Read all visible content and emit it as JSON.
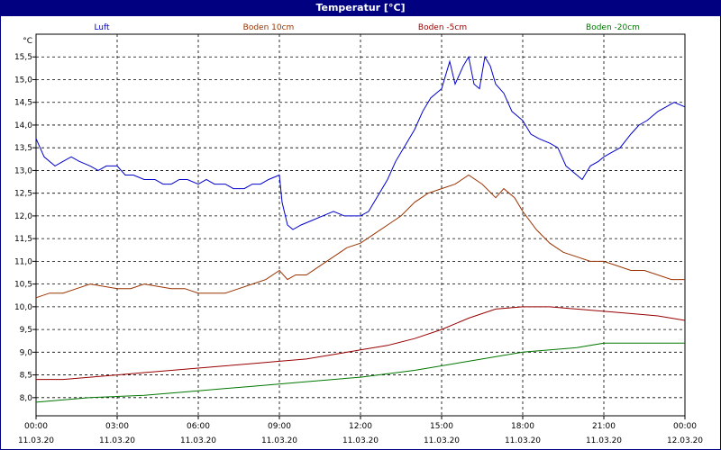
{
  "window": {
    "title": "Temperatur [°C]"
  },
  "chart_data": {
    "type": "line",
    "title": "Temperatur [°C]",
    "ylabel": "°C",
    "xlabel": "",
    "ylim": [
      7.6,
      16.0
    ],
    "xlim_hours": [
      0,
      24
    ],
    "grid": true,
    "legend_position": "top",
    "y_ticks": [
      "8,0",
      "8,5",
      "9,0",
      "9,5",
      "10,0",
      "10,5",
      "11,0",
      "11,5",
      "12,0",
      "12,5",
      "13,0",
      "13,5",
      "14,0",
      "14,5",
      "15,0",
      "15,5"
    ],
    "x_ticks": [
      {
        "time": "00:00",
        "date": "11.03.20"
      },
      {
        "time": "03:00",
        "date": "11.03.20"
      },
      {
        "time": "06:00",
        "date": "11.03.20"
      },
      {
        "time": "09:00",
        "date": "11.03.20"
      },
      {
        "time": "12:00",
        "date": "11.03.20"
      },
      {
        "time": "15:00",
        "date": "11.03.20"
      },
      {
        "time": "18:00",
        "date": "11.03.20"
      },
      {
        "time": "21:00",
        "date": "11.03.20"
      },
      {
        "time": "00:00",
        "date": "12.03.20"
      }
    ],
    "series": [
      {
        "name": "Luft",
        "color": "#0000cc",
        "points": [
          [
            0,
            13.7
          ],
          [
            0.3,
            13.3
          ],
          [
            0.7,
            13.1
          ],
          [
            1.0,
            13.2
          ],
          [
            1.3,
            13.3
          ],
          [
            1.6,
            13.2
          ],
          [
            2.0,
            13.1
          ],
          [
            2.3,
            13.0
          ],
          [
            2.6,
            13.1
          ],
          [
            3.0,
            13.1
          ],
          [
            3.3,
            12.9
          ],
          [
            3.6,
            12.9
          ],
          [
            4.0,
            12.8
          ],
          [
            4.4,
            12.8
          ],
          [
            4.7,
            12.7
          ],
          [
            5.0,
            12.7
          ],
          [
            5.3,
            12.8
          ],
          [
            5.6,
            12.8
          ],
          [
            6.0,
            12.7
          ],
          [
            6.3,
            12.8
          ],
          [
            6.6,
            12.7
          ],
          [
            7.0,
            12.7
          ],
          [
            7.3,
            12.6
          ],
          [
            7.7,
            12.6
          ],
          [
            8.0,
            12.7
          ],
          [
            8.3,
            12.7
          ],
          [
            8.6,
            12.8
          ],
          [
            9.0,
            12.9
          ],
          [
            9.1,
            12.3
          ],
          [
            9.3,
            11.8
          ],
          [
            9.5,
            11.7
          ],
          [
            9.8,
            11.8
          ],
          [
            10.2,
            11.9
          ],
          [
            10.6,
            12.0
          ],
          [
            11.0,
            12.1
          ],
          [
            11.4,
            12.0
          ],
          [
            11.7,
            12.0
          ],
          [
            12.0,
            12.0
          ],
          [
            12.3,
            12.1
          ],
          [
            12.6,
            12.4
          ],
          [
            13.0,
            12.8
          ],
          [
            13.3,
            13.2
          ],
          [
            13.6,
            13.5
          ],
          [
            14.0,
            13.9
          ],
          [
            14.3,
            14.3
          ],
          [
            14.6,
            14.6
          ],
          [
            15.0,
            14.8
          ],
          [
            15.3,
            15.4
          ],
          [
            15.5,
            14.9
          ],
          [
            15.8,
            15.3
          ],
          [
            16.0,
            15.5
          ],
          [
            16.2,
            14.9
          ],
          [
            16.4,
            14.8
          ],
          [
            16.6,
            15.5
          ],
          [
            16.8,
            15.3
          ],
          [
            17.0,
            14.9
          ],
          [
            17.3,
            14.7
          ],
          [
            17.6,
            14.3
          ],
          [
            18.0,
            14.1
          ],
          [
            18.3,
            13.8
          ],
          [
            18.6,
            13.7
          ],
          [
            19.0,
            13.6
          ],
          [
            19.3,
            13.5
          ],
          [
            19.6,
            13.1
          ],
          [
            20.0,
            12.9
          ],
          [
            20.2,
            12.8
          ],
          [
            20.5,
            13.1
          ],
          [
            20.8,
            13.2
          ],
          [
            21.0,
            13.3
          ],
          [
            21.3,
            13.4
          ],
          [
            21.6,
            13.5
          ],
          [
            22.0,
            13.8
          ],
          [
            22.3,
            14.0
          ],
          [
            22.6,
            14.1
          ],
          [
            23.0,
            14.3
          ],
          [
            23.3,
            14.4
          ],
          [
            23.6,
            14.5
          ],
          [
            24.0,
            14.4
          ]
        ]
      },
      {
        "name": "Boden 10cm",
        "color": "#993300",
        "points": [
          [
            0,
            10.2
          ],
          [
            0.5,
            10.3
          ],
          [
            1.0,
            10.3
          ],
          [
            1.5,
            10.4
          ],
          [
            2.0,
            10.5
          ],
          [
            3.0,
            10.4
          ],
          [
            3.5,
            10.4
          ],
          [
            4.0,
            10.5
          ],
          [
            5.0,
            10.4
          ],
          [
            5.5,
            10.4
          ],
          [
            6.0,
            10.3
          ],
          [
            7.0,
            10.3
          ],
          [
            7.5,
            10.4
          ],
          [
            8.0,
            10.5
          ],
          [
            8.5,
            10.6
          ],
          [
            9.0,
            10.8
          ],
          [
            9.3,
            10.6
          ],
          [
            9.6,
            10.7
          ],
          [
            10.0,
            10.7
          ],
          [
            10.5,
            10.9
          ],
          [
            11.0,
            11.1
          ],
          [
            11.5,
            11.3
          ],
          [
            12.0,
            11.4
          ],
          [
            12.5,
            11.6
          ],
          [
            13.0,
            11.8
          ],
          [
            13.5,
            12.0
          ],
          [
            14.0,
            12.3
          ],
          [
            14.5,
            12.5
          ],
          [
            15.0,
            12.6
          ],
          [
            15.5,
            12.7
          ],
          [
            16.0,
            12.9
          ],
          [
            16.5,
            12.7
          ],
          [
            17.0,
            12.4
          ],
          [
            17.3,
            12.6
          ],
          [
            17.7,
            12.4
          ],
          [
            18.0,
            12.1
          ],
          [
            18.5,
            11.7
          ],
          [
            19.0,
            11.4
          ],
          [
            19.5,
            11.2
          ],
          [
            20.0,
            11.1
          ],
          [
            20.5,
            11.0
          ],
          [
            21.0,
            11.0
          ],
          [
            21.5,
            10.9
          ],
          [
            22.0,
            10.8
          ],
          [
            22.5,
            10.8
          ],
          [
            23.0,
            10.7
          ],
          [
            23.5,
            10.6
          ],
          [
            24.0,
            10.6
          ]
        ]
      },
      {
        "name": "Boden -5cm",
        "color": "#990000",
        "points": [
          [
            0,
            8.4
          ],
          [
            1,
            8.4
          ],
          [
            2,
            8.45
          ],
          [
            3,
            8.5
          ],
          [
            4,
            8.55
          ],
          [
            5,
            8.6
          ],
          [
            6,
            8.65
          ],
          [
            7,
            8.7
          ],
          [
            8,
            8.75
          ],
          [
            9,
            8.8
          ],
          [
            10,
            8.85
          ],
          [
            11,
            8.95
          ],
          [
            12,
            9.05
          ],
          [
            13,
            9.15
          ],
          [
            14,
            9.3
          ],
          [
            15,
            9.5
          ],
          [
            16,
            9.75
          ],
          [
            17,
            9.95
          ],
          [
            18,
            10.0
          ],
          [
            19,
            10.0
          ],
          [
            20,
            9.95
          ],
          [
            21,
            9.9
          ],
          [
            22,
            9.85
          ],
          [
            23,
            9.8
          ],
          [
            24,
            9.7
          ]
        ]
      },
      {
        "name": "Boden -20cm",
        "color": "#007700",
        "points": [
          [
            0,
            7.9
          ],
          [
            2,
            8.0
          ],
          [
            4,
            8.05
          ],
          [
            6,
            8.15
          ],
          [
            8,
            8.25
          ],
          [
            10,
            8.35
          ],
          [
            12,
            8.45
          ],
          [
            14,
            8.6
          ],
          [
            16,
            8.8
          ],
          [
            18,
            9.0
          ],
          [
            20,
            9.1
          ],
          [
            21,
            9.2
          ],
          [
            24,
            9.2
          ]
        ]
      }
    ]
  }
}
